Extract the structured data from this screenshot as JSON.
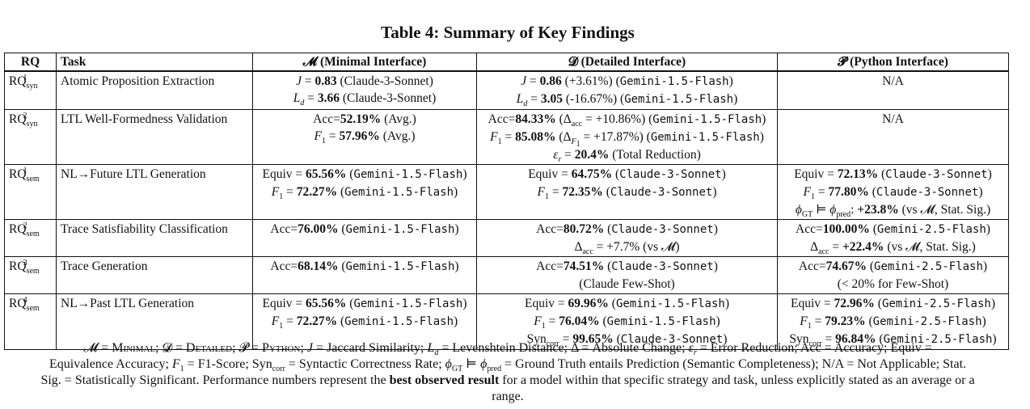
{
  "title": "Table 4: Summary of Key Findings",
  "headers": {
    "rq": "RQ",
    "task": "Task",
    "minimal": "𝓜 (Minimal Interface)",
    "detailed": "𝓓 (Detailed Interface)",
    "python": "𝓟 (Python Interface)"
  },
  "rows": [
    {
      "rq": "RQ",
      "rq_sub": "syn",
      "rq_sup": "1",
      "task": "Atomic Proposition Extraction",
      "minimal": [
        "J = 0.83 (Claude-3-Sonnet)",
        "L_d = 3.66 (Claude-3-Sonnet)"
      ],
      "detailed": [
        "J = 0.86 (+3.61%) (Gemini-1.5-Flash)",
        "L_d = 3.05 (-16.67%) (Gemini-1.5-Flash)"
      ],
      "python": [
        "N/A"
      ]
    },
    {
      "rq": "RQ",
      "rq_sub": "syn",
      "rq_sup": "2",
      "task": "LTL Well-Formedness Validation",
      "minimal": [
        "Acc=52.19% (Avg.)",
        "F1 = 57.96% (Avg.)"
      ],
      "detailed": [
        "Acc=84.33% (Δacc = +10.86%) (Gemini-1.5-Flash)",
        "F1 = 85.08% (ΔF1 = +17.87%) (Gemini-1.5-Flash)",
        "εr = 20.4% (Total Reduction)"
      ],
      "python": [
        "N/A"
      ]
    },
    {
      "rq": "RQ",
      "rq_sub": "sem",
      "rq_sup": "1",
      "task": "NL→Future LTL Generation",
      "minimal": [
        "Equiv = 65.56% (Gemini-1.5-Flash)",
        "F1 = 72.27% (Gemini-1.5-Flash)"
      ],
      "detailed": [
        "Equiv = 64.75% (Claude-3-Sonnet)",
        "F1 = 72.35% (Claude-3-Sonnet)"
      ],
      "python": [
        "Equiv = 72.13% (Claude-3-Sonnet)",
        "F1 = 77.80% (Claude-3-Sonnet)",
        "ϕGT ⊨ ϕpred: +23.8% (vs 𝓜, Stat. Sig.)"
      ]
    },
    {
      "rq": "RQ",
      "rq_sub": "sem",
      "rq_sup": "2",
      "task": "Trace Satisfiability Classification",
      "minimal": [
        "Acc=76.00% (Gemini-1.5-Flash)"
      ],
      "detailed": [
        "Acc=80.72% (Claude-3-Sonnet)",
        "Δacc = +7.7% (vs 𝓜)"
      ],
      "python": [
        "Acc=100.00% (Gemini-2.5-Flash)",
        "Δacc = +22.4% (vs 𝓜, Stat. Sig.)"
      ]
    },
    {
      "rq": "RQ",
      "rq_sub": "sem",
      "rq_sup": "3",
      "task": "Trace Generation",
      "minimal": [
        "Acc=68.14% (Gemini-1.5-Flash)"
      ],
      "detailed": [
        "Acc=74.51% (Claude-3-Sonnet)",
        "(Claude Few-Shot)"
      ],
      "python": [
        "Acc=74.67% (Gemini-2.5-Flash)",
        "(< 20% for Few-Shot)"
      ]
    },
    {
      "rq": "RQ",
      "rq_sub": "sem",
      "rq_sup": "4",
      "task": "NL→Past LTL Generation",
      "minimal": [
        "Equiv = 65.56% (Gemini-1.5-Flash)",
        "F1 = 72.27% (Gemini-1.5-Flash)"
      ],
      "detailed": [
        "Equiv = 69.96% (Gemini-1.5-Flash)",
        "F1 = 76.04% (Gemini-1.5-Flash)",
        "Syncorr = 99.65% (Claude-3-Sonnet)"
      ],
      "python": [
        "Equiv = 72.96% (Gemini-2.5-Flash)",
        "F1 = 79.23% (Gemini-2.5-Flash)",
        "Syncorr = 96.84% (Gemini-2.5-Flash)"
      ]
    }
  ],
  "footnote": [
    "𝓜 = Minimal; 𝓓 = Detailed; 𝓟 = Python; J = Jaccard Similarity; Ld = Levenshtein Distance; Δ = Absolute Change; εr = Error Reduction; Acc = Accuracy; Equiv =",
    "Equivalence Accuracy; F1 = F1-Score; Syncorr = Syntactic Correctness Rate; ϕGT ⊨ ϕpred = Ground Truth entails Prediction (Semantic Completeness); N/A = Not Applicable; Stat.",
    "Sig. = Statistically Significant. Performance numbers represent the best observed result for a model within that specific strategy and task, unless explicitly stated as an average or a",
    "range."
  ]
}
